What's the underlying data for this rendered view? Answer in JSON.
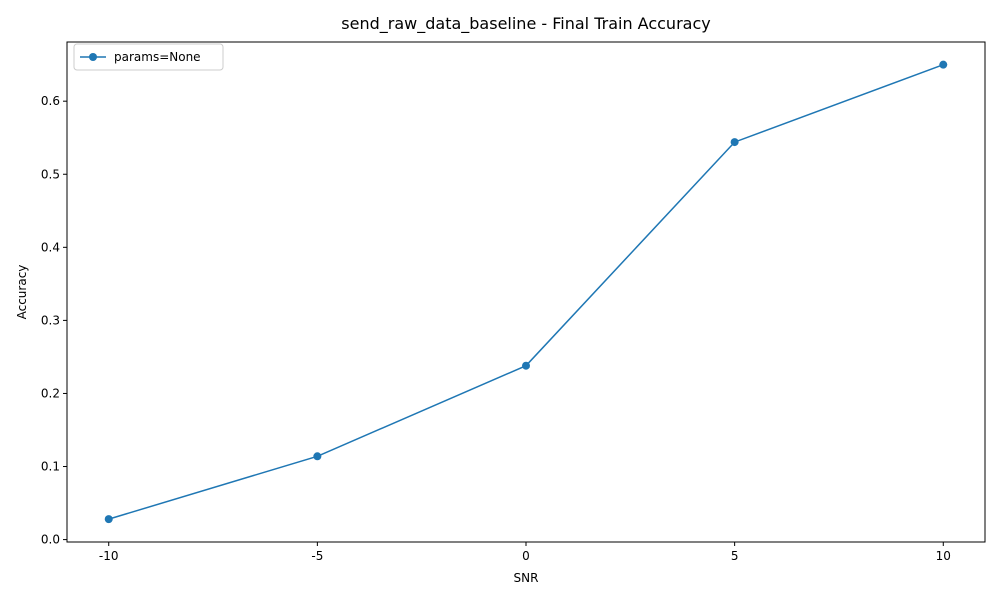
{
  "chart_data": {
    "type": "line",
    "title": "send_raw_data_baseline - Final Train Accuracy",
    "xlabel": "SNR",
    "ylabel": "Accuracy",
    "x_tick_labels": [
      "-10",
      "-5",
      "0",
      "5",
      "10"
    ],
    "y_tick_labels": [
      "0.0",
      "0.1",
      "0.2",
      "0.3",
      "0.4",
      "0.5",
      "0.6"
    ],
    "y_ticks": [
      0.0,
      0.1,
      0.2,
      0.3,
      0.4,
      0.5,
      0.6
    ],
    "ylim": [
      -0.0033,
      0.681
    ],
    "grid": false,
    "legend_position": "upper-left",
    "series": [
      {
        "name": "params=None",
        "color": "#1f77b4",
        "marker": "circle",
        "x": [
          -10,
          -5,
          0,
          5,
          10
        ],
        "y": [
          0.028,
          0.114,
          0.238,
          0.544,
          0.65
        ]
      }
    ]
  }
}
